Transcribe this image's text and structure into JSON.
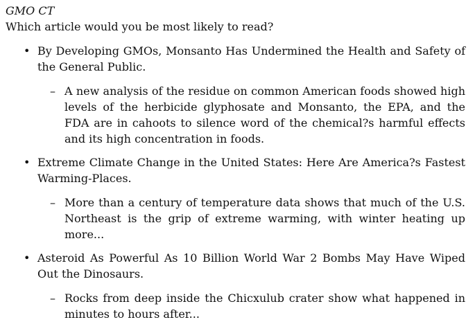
{
  "header": {
    "title": "GMO CT",
    "question": "Which article would you be most likely to read?"
  },
  "articles": [
    {
      "headline": "By Developing GMOs, Monsanto Has Undermined the Health and Safety of the General Public.",
      "summary": "A new analysis of the residue on common American foods showed high levels of the herbicide glyphosate and Monsanto, the EPA, and the FDA are in cahoots to silence word of the chemical?s harmful effects and its high concentration in foods."
    },
    {
      "headline": "Extreme Climate Change in the United States: Here Are America?s Fastest Warming-Places.",
      "summary": "More than a century of temperature data shows that much of the U.S. Northeast is the grip of extreme warming, with winter heating up more..."
    },
    {
      "headline": "Asteroid As Powerful As 10 Billion World War 2 Bombs May Have Wiped Out the Dinosaurs.",
      "summary": "Rocks from deep inside the Chicxulub crater show what happened in minutes to hours after..."
    }
  ],
  "markers": {
    "bullet": "•",
    "dash": "–"
  }
}
